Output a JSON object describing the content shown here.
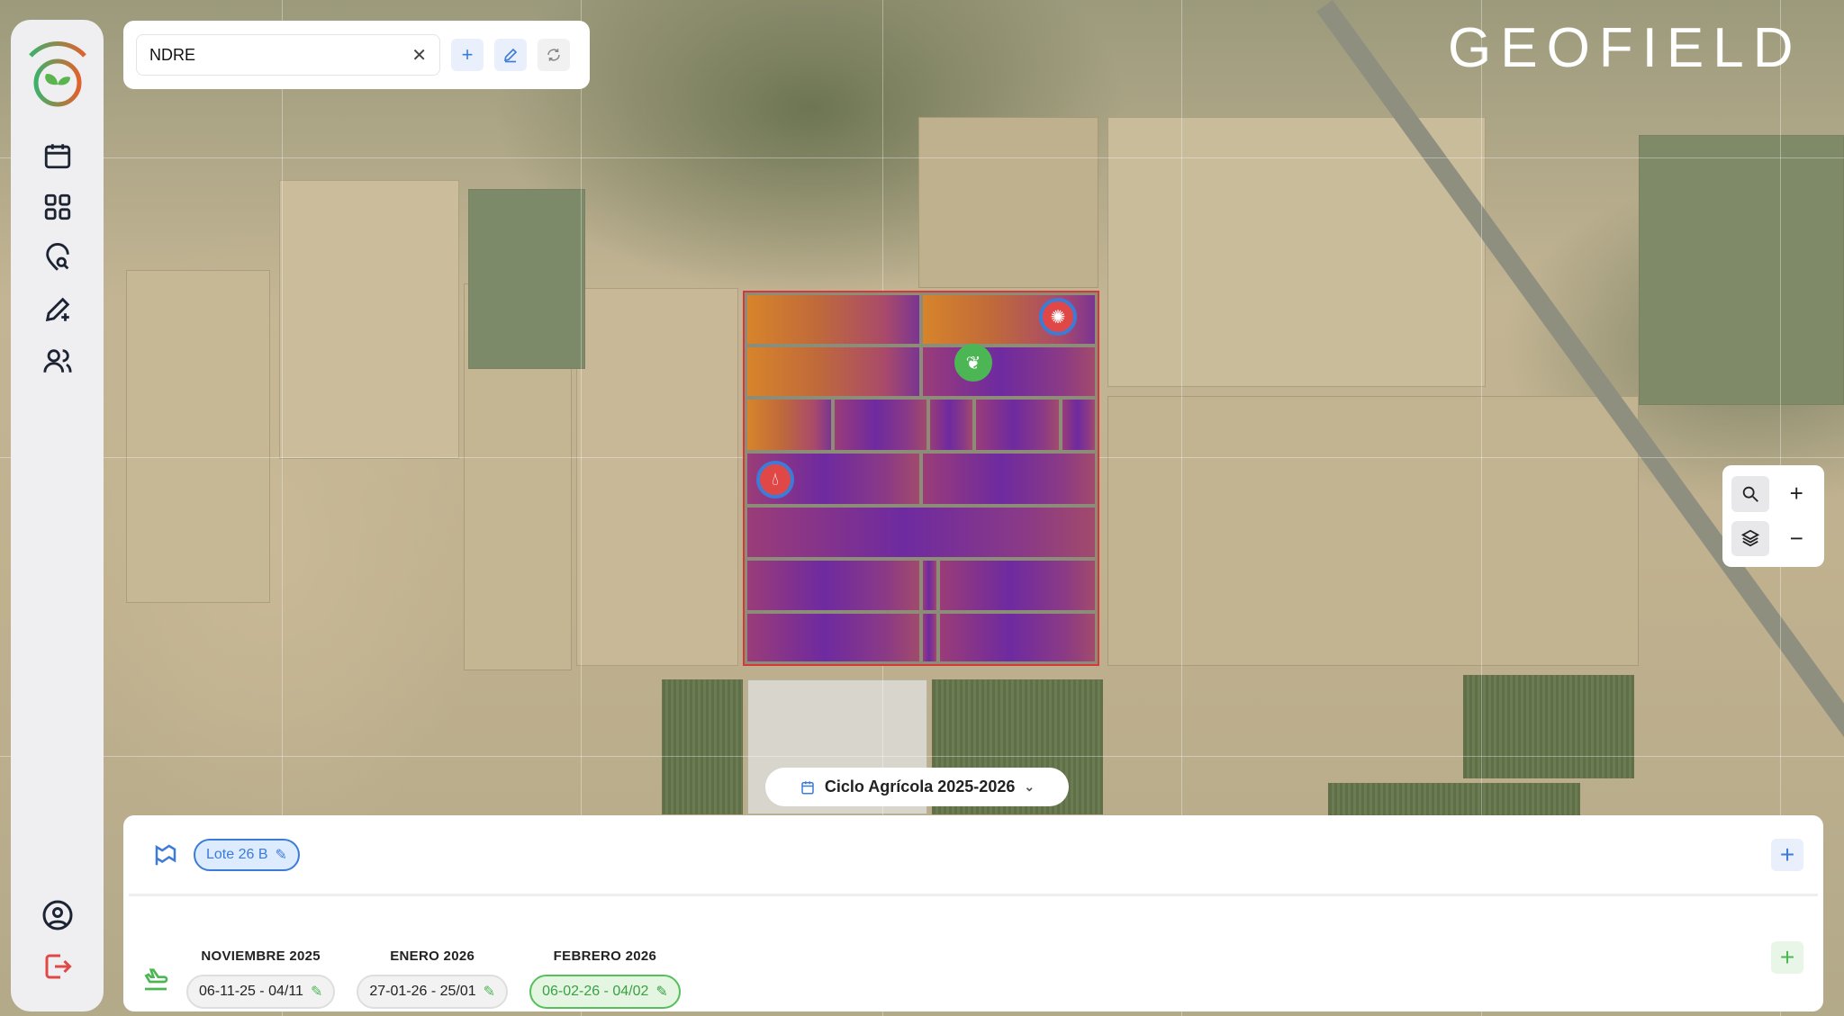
{
  "search": {
    "value": "NDRE",
    "clear_icon": "close-icon",
    "buttons": [
      {
        "icon": "plus-icon"
      },
      {
        "icon": "edit-icon"
      },
      {
        "icon": "refresh-icon"
      }
    ]
  },
  "brand": {
    "logo_text": "GEOFIELD"
  },
  "sidebar": {
    "items": [
      {
        "icon": "calendar-icon"
      },
      {
        "icon": "grid-icon"
      },
      {
        "icon": "location-search-icon"
      },
      {
        "icon": "pencil-plus-icon"
      },
      {
        "icon": "users-icon"
      }
    ],
    "bottom": [
      {
        "icon": "user-circle-icon"
      },
      {
        "icon": "logout-icon"
      }
    ]
  },
  "map": {
    "layer": "NDRE",
    "markers": [
      {
        "type": "disease",
        "icon": "virus-icon",
        "color": "#e04848"
      },
      {
        "type": "crop",
        "icon": "leaf-icon",
        "color": "#4cb655"
      },
      {
        "type": "irrigation",
        "icon": "drop-icon",
        "color": "#e04848"
      }
    ]
  },
  "map_controls": {
    "items": [
      {
        "icon": "search-icon"
      },
      {
        "icon": "plus-icon"
      },
      {
        "icon": "layers-icon"
      },
      {
        "icon": "minus-icon"
      }
    ]
  },
  "cycle": {
    "label": "Ciclo Agrícola 2025-2026"
  },
  "panel": {
    "lote": {
      "label": "Lote 26 B"
    },
    "flights": [
      {
        "month": "NOVIEMBRE 2025",
        "range": "06-11-25 - 04/11",
        "active": false
      },
      {
        "month": "ENERO 2026",
        "range": "27-01-26 - 25/01",
        "active": false
      },
      {
        "month": "FEBRERO 2026",
        "range": "06-02-26 - 04/02",
        "active": true
      }
    ]
  },
  "colors": {
    "accent_blue": "#3d7bd8",
    "accent_green": "#4cb655",
    "danger": "#e04848"
  }
}
